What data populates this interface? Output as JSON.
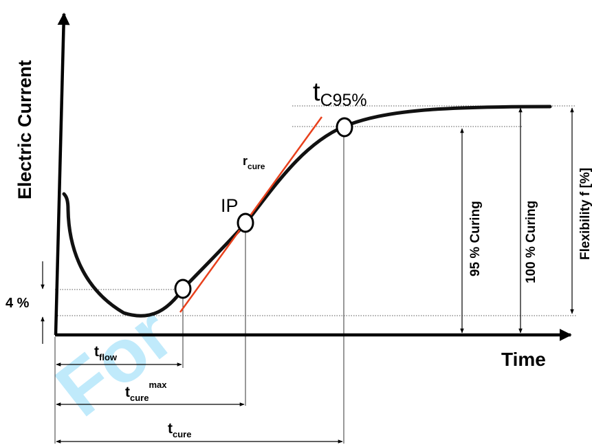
{
  "axes": {
    "y_label": "Electric Current",
    "x_label": "Time"
  },
  "points": {
    "tc95": {
      "base": "t",
      "sub": "C95%"
    },
    "ip": "IP",
    "rcure": {
      "base": "r",
      "sub": "cure"
    }
  },
  "percent_label": "4 %",
  "vertical_labels": {
    "curing95": "95 % Curing",
    "curing100": "100 % Curing",
    "flexibility": "Flexibility f [%]"
  },
  "times": {
    "tflow": {
      "base": "t",
      "sub": "flow"
    },
    "tcuremax": {
      "base": "t",
      "sub": "cure",
      "sup": "max"
    },
    "tcure": {
      "base": "t",
      "sub": "cure"
    }
  },
  "watermark": "For"
}
